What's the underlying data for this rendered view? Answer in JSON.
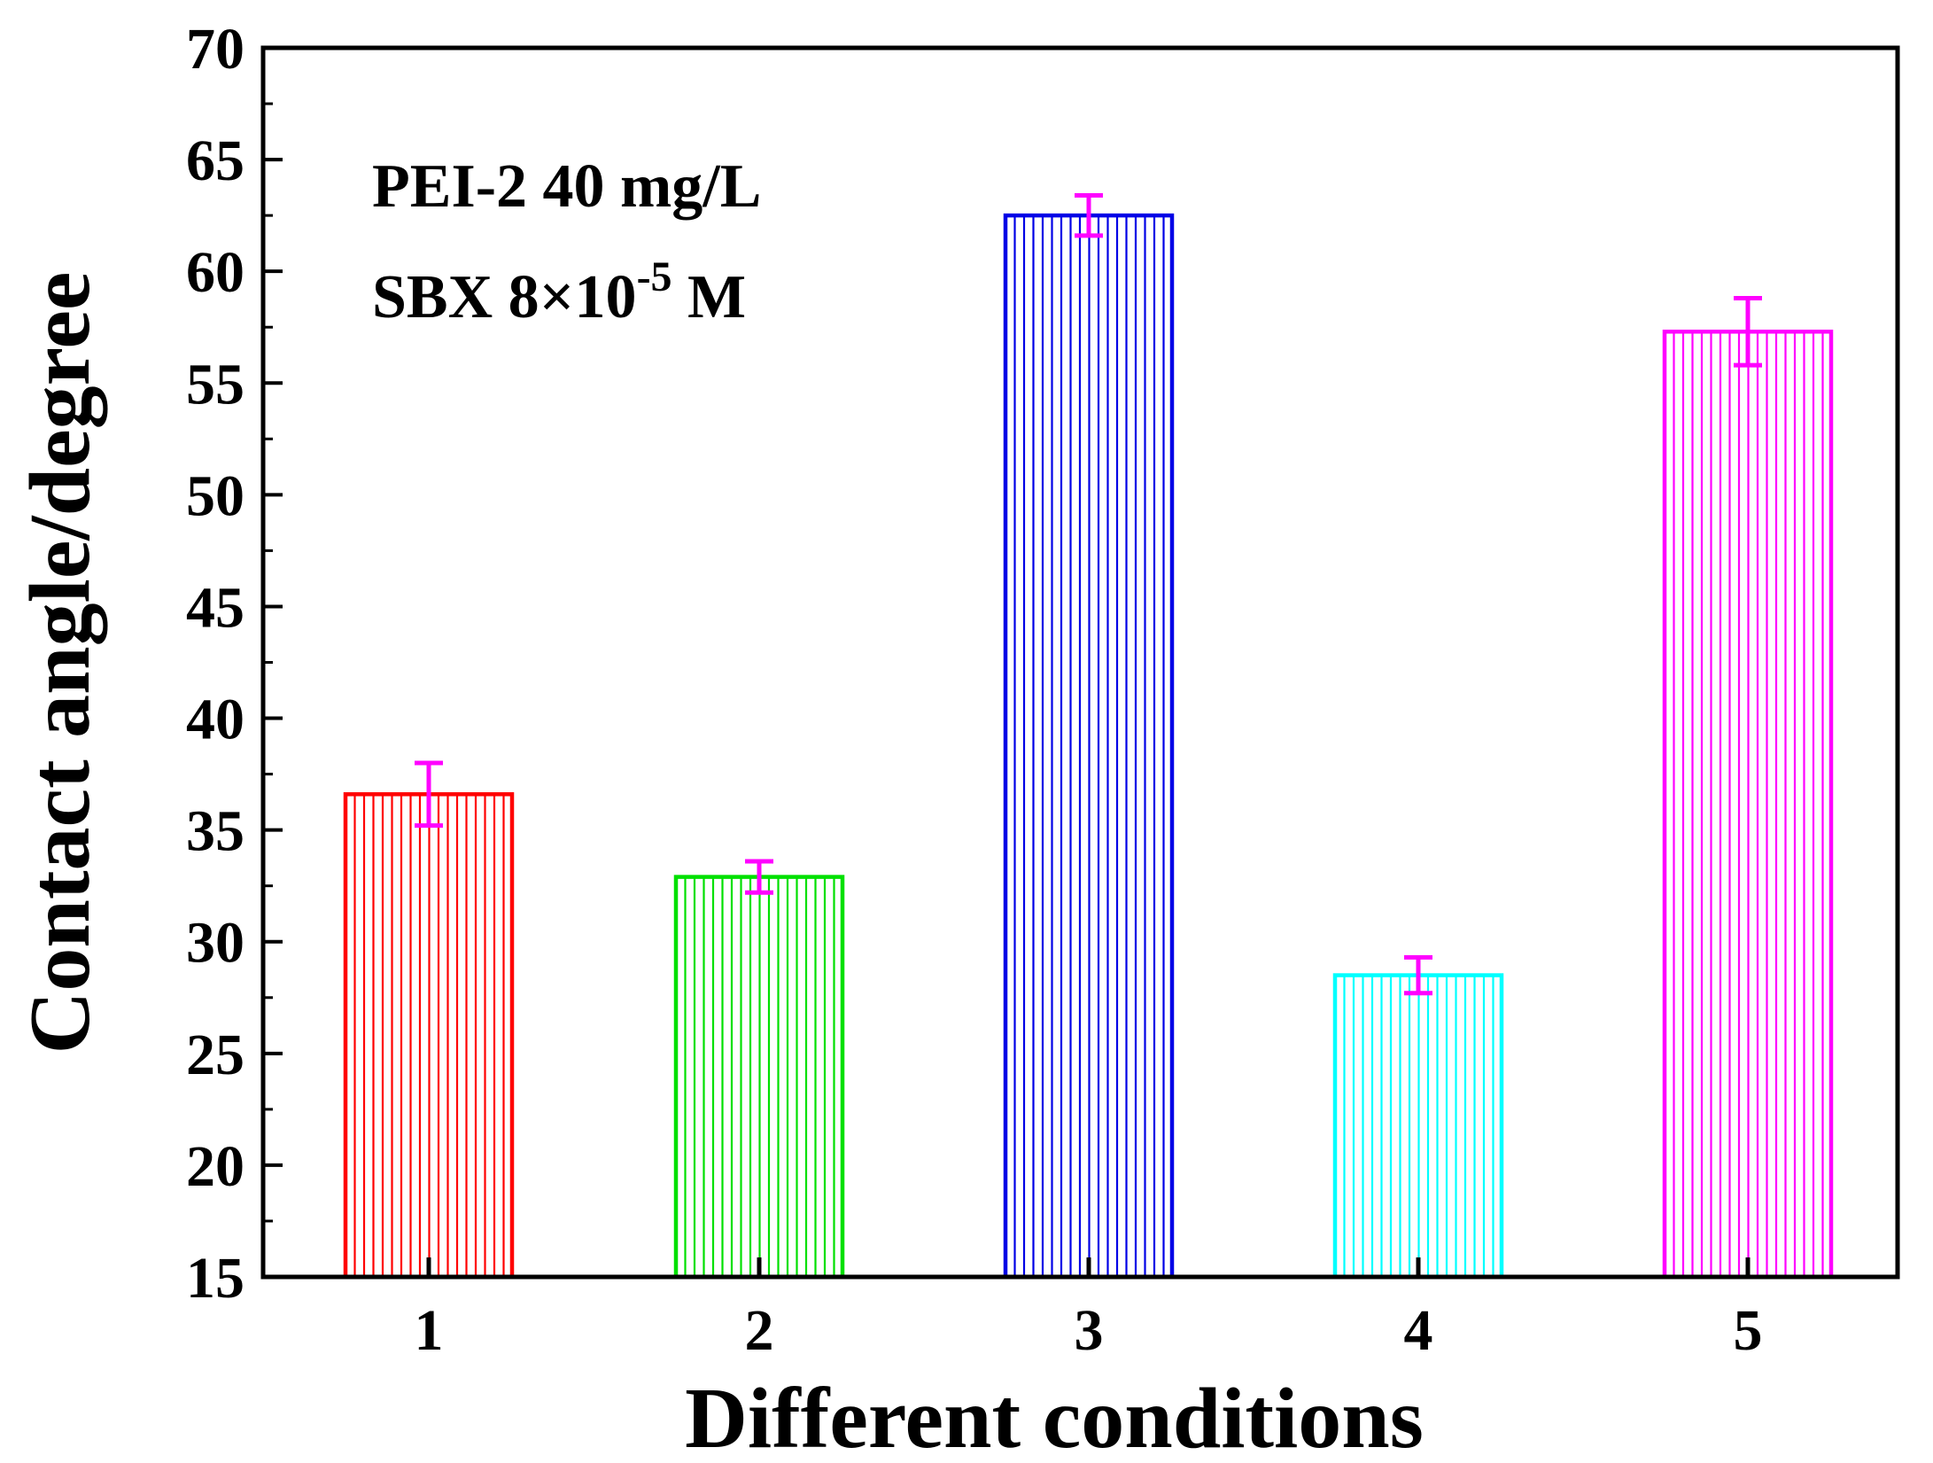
{
  "chart_data": {
    "type": "bar",
    "title": "",
    "xlabel": "Different conditions",
    "ylabel": "Contact angle/degree",
    "categories": [
      "1",
      "2",
      "3",
      "4",
      "5"
    ],
    "values": [
      36.6,
      32.9,
      62.5,
      28.5,
      57.3
    ],
    "errors": [
      1.4,
      0.7,
      0.9,
      0.8,
      1.5
    ],
    "ylim": [
      15,
      70
    ],
    "yticks": [
      15,
      20,
      25,
      30,
      35,
      40,
      45,
      50,
      55,
      60,
      65,
      70
    ],
    "bar_colors": [
      "#ff0000",
      "#00e000",
      "#0000e6",
      "#00ffff",
      "#ff00ff"
    ],
    "error_bar_color": "#ff00ff",
    "hatch": "vertical-lines",
    "grid": false,
    "annotation": {
      "line1": "PEI-2 40 mg/L",
      "line2_prefix": "SBX 8×10",
      "line2_exponent": "-5",
      "line2_suffix": " M"
    }
  }
}
